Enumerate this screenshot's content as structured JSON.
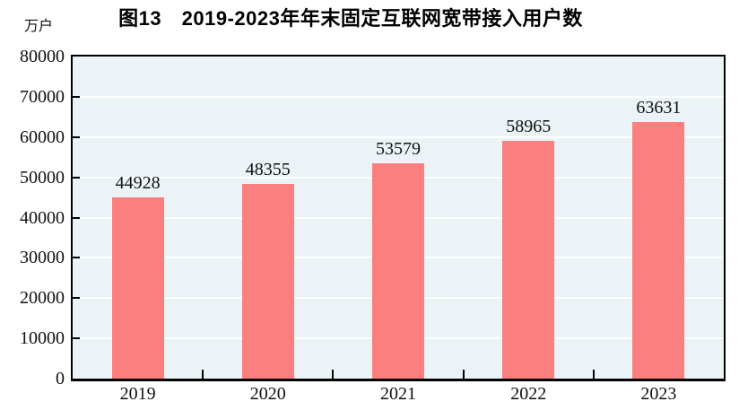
{
  "figure": {
    "title": "图13　2019-2023年年末固定互联网宽带接入用户数",
    "unit_label": "万户"
  },
  "chart_data": {
    "type": "bar",
    "title": "图13　2019-2023年年末固定互联网宽带接入用户数",
    "unit": "万户",
    "categories": [
      "2019",
      "2020",
      "2021",
      "2022",
      "2023"
    ],
    "values": [
      44928,
      48355,
      53579,
      58965,
      63631
    ],
    "data_labels_shown": true,
    "xlabel": "",
    "ylabel": "万户",
    "ylim": [
      0,
      80000
    ],
    "ytick_step": 10000,
    "yticks": [
      0,
      10000,
      20000,
      30000,
      40000,
      50000,
      60000,
      70000,
      80000
    ],
    "grid": true,
    "legend": false
  },
  "style": {
    "bar_color": "#fb7f7f",
    "plot_bg_color": "#ebf3f7",
    "gridline_color": "#ffffff",
    "axis_color": "#000000",
    "text_color": "#111111",
    "page_bg": "#ffffff"
  }
}
